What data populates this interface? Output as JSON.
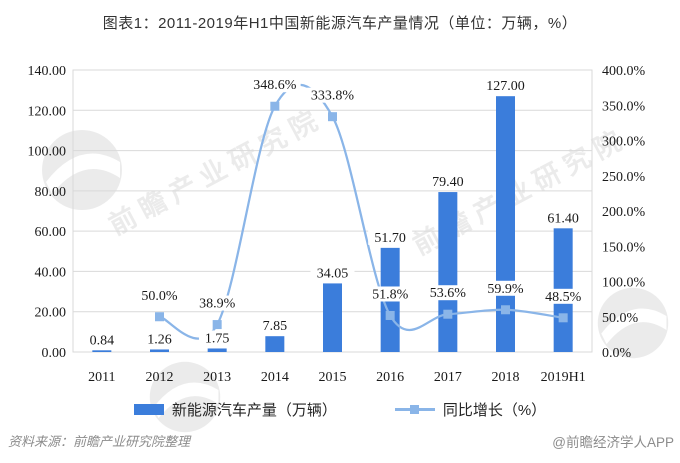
{
  "chart_data": {
    "type": "combo-bar-line",
    "title": "图表1：2011-2019年H1中国新能源汽车产量情况（单位：万辆，%）",
    "categories": [
      "2011",
      "2012",
      "2013",
      "2014",
      "2015",
      "2016",
      "2017",
      "2018",
      "2019H1"
    ],
    "series": [
      {
        "name": "新能源汽车产量（万辆）",
        "type": "bar",
        "axis": "left",
        "values": [
          0.84,
          1.26,
          1.75,
          7.85,
          34.05,
          51.7,
          79.4,
          127.0,
          61.4
        ],
        "labels": [
          "0.84",
          "1.26",
          "1.75",
          "7.85",
          "34.05",
          "51.70",
          "79.40",
          "127.00",
          "61.40"
        ]
      },
      {
        "name": "同比增长（%）",
        "type": "line",
        "axis": "right",
        "values": [
          null,
          50.0,
          38.9,
          348.6,
          333.8,
          51.8,
          53.6,
          59.9,
          48.5
        ],
        "labels": [
          null,
          "50.0%",
          "38.9%",
          "348.6%",
          "333.8%",
          "51.8%",
          "53.6%",
          "59.9%",
          "48.5%"
        ]
      }
    ],
    "left_axis": {
      "min": 0,
      "max": 140,
      "step": 20,
      "tick_format": "two-decimals"
    },
    "right_axis": {
      "min": 0,
      "max": 400,
      "step": 50,
      "tick_format": "percent-one-decimal"
    },
    "grid": "horizontal",
    "legend_position": "bottom",
    "colors": {
      "bar": "#3B7DDB",
      "line": "#8AB5E8",
      "grid": "#D9D9D9",
      "axis_text": "#1A1A1A",
      "label_bg": "#FFFFFF"
    }
  },
  "watermark": {
    "text": "前瞻产业研究院"
  },
  "footer": {
    "source": "资料来源：前瞻产业研究院整理",
    "credit": "@前瞻经济学人APP"
  }
}
